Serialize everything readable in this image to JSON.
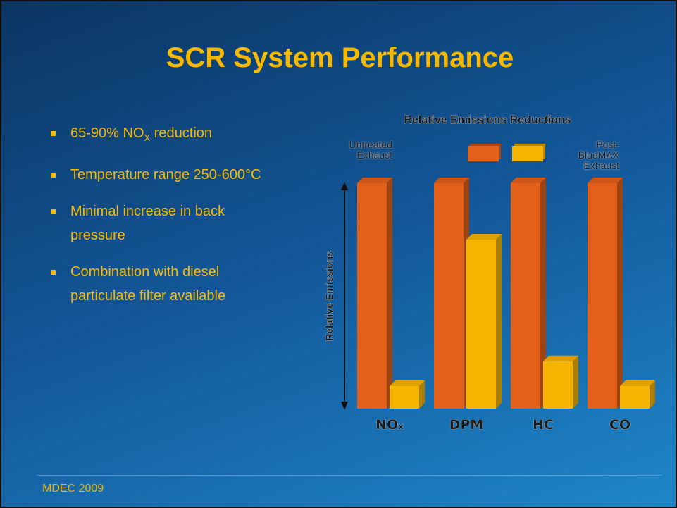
{
  "slide": {
    "title": "SCR System Performance",
    "bullets": [
      {
        "text": "65-90% NO",
        "sub": "X",
        "tail": " reduction"
      },
      {
        "text": "Temperature range 250-600°C"
      },
      {
        "text": "Minimal increase in back pressure"
      },
      {
        "text": "Combination with diesel particulate filter available"
      }
    ],
    "footer": "MDEC 2009"
  },
  "chart_data": {
    "type": "bar",
    "title": "Relative Emissions Reductions",
    "y_label": "Relative Emissions",
    "categories": [
      "NOₓ",
      "DPM",
      "HC",
      "CO"
    ],
    "series": [
      {
        "name": "Untreated Exhaust",
        "color": "#e2601a",
        "values": [
          100,
          100,
          100,
          100
        ]
      },
      {
        "name": "Post-BlueMAX Exhaust",
        "color": "#f5b400",
        "values": [
          10,
          75,
          21,
          10
        ]
      }
    ],
    "ylim": [
      0,
      100
    ]
  }
}
